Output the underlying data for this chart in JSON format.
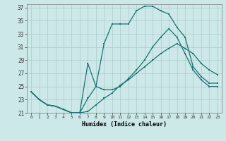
{
  "xlabel": "Humidex (Indice chaleur)",
  "bg_color": "#cce8e8",
  "grid_color": "#aacccc",
  "line_color": "#1a7070",
  "xlim": [
    -0.5,
    23.5
  ],
  "ylim": [
    21,
    37.5
  ],
  "xticks": [
    0,
    1,
    2,
    3,
    4,
    5,
    6,
    7,
    8,
    9,
    10,
    11,
    12,
    13,
    14,
    15,
    16,
    17,
    18,
    19,
    20,
    21,
    22,
    23
  ],
  "yticks": [
    21,
    23,
    25,
    27,
    29,
    31,
    33,
    35,
    37
  ],
  "line1_x": [
    0,
    1,
    2,
    3,
    4,
    5,
    6,
    7,
    8,
    9,
    10,
    11,
    12,
    13,
    14,
    15,
    16,
    17,
    18,
    19,
    20,
    21,
    22,
    23
  ],
  "line1_y": [
    24.2,
    23.0,
    22.2,
    22.0,
    21.5,
    21.0,
    21.0,
    21.2,
    22.2,
    23.2,
    24.0,
    25.2,
    26.0,
    27.0,
    28.0,
    29.0,
    30.0,
    30.8,
    31.5,
    30.8,
    30.0,
    28.5,
    27.5,
    26.8
  ],
  "line2_x": [
    0,
    1,
    2,
    3,
    4,
    5,
    6,
    7,
    8,
    9,
    10,
    11,
    12,
    13,
    14,
    15,
    16,
    17,
    18,
    19,
    20,
    21,
    22,
    23
  ],
  "line2_y": [
    24.2,
    23.0,
    22.2,
    22.0,
    21.5,
    21.0,
    21.0,
    28.5,
    25.0,
    24.5,
    24.5,
    25.0,
    26.2,
    27.5,
    29.0,
    31.0,
    32.5,
    33.8,
    32.5,
    30.0,
    27.5,
    26.0,
    25.0,
    25.0
  ],
  "line3_x": [
    0,
    1,
    2,
    3,
    4,
    5,
    6,
    7,
    8,
    9,
    10,
    11,
    12,
    13,
    14,
    15,
    16,
    17,
    18,
    19,
    20,
    21,
    22,
    23
  ],
  "line3_y": [
    24.2,
    23.0,
    22.2,
    22.0,
    21.5,
    21.0,
    21.0,
    23.2,
    25.0,
    31.5,
    34.5,
    34.5,
    34.5,
    36.5,
    37.2,
    37.2,
    36.5,
    36.0,
    34.0,
    32.5,
    28.0,
    26.5,
    25.5,
    25.5
  ]
}
